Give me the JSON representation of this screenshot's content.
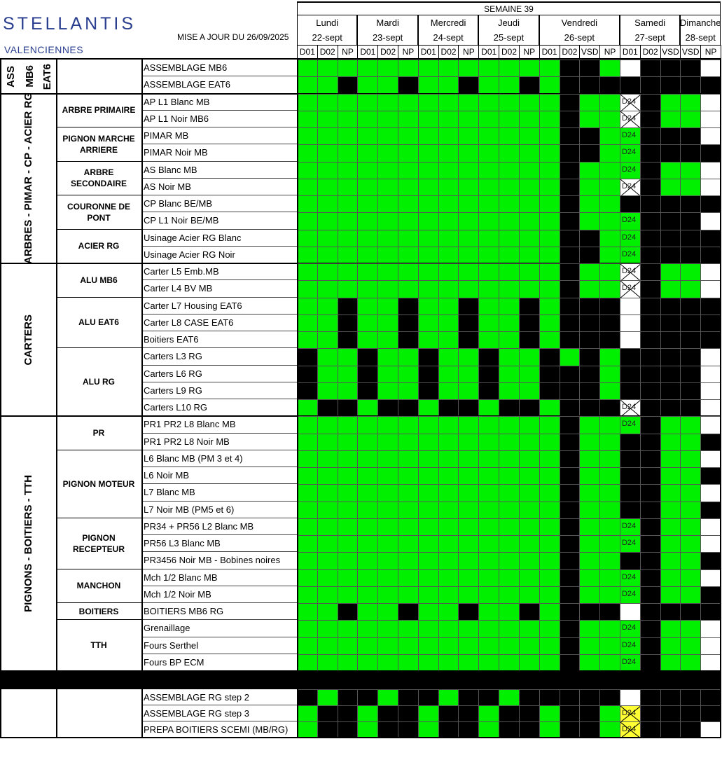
{
  "header": {
    "logo": "STELLANTIS",
    "site": "VALENCIENNES",
    "update": "MISE A JOUR DU 26/09/2025",
    "week": "SEMAINE 39"
  },
  "days": [
    {
      "name": "Lundi",
      "date": "22-sept",
      "shifts": [
        "D01",
        "D02",
        "NP"
      ]
    },
    {
      "name": "Mardi",
      "date": "23-sept",
      "shifts": [
        "D01",
        "D02",
        "NP"
      ]
    },
    {
      "name": "Mercredi",
      "date": "24-sept",
      "shifts": [
        "D01",
        "D02",
        "NP"
      ]
    },
    {
      "name": "Jeudi",
      "date": "25-sept",
      "shifts": [
        "D01",
        "D02",
        "NP"
      ]
    },
    {
      "name": "Vendredi",
      "date": "26-sept",
      "shifts": [
        "D01",
        "D02",
        "VSD",
        "NP"
      ]
    },
    {
      "name": "Samedi",
      "date": "27-sept",
      "shifts": [
        "D01",
        "D02",
        "VSD"
      ]
    },
    {
      "name": "Dimanche",
      "date": "28-sept",
      "shifts": [
        "VSD",
        "NP"
      ]
    }
  ],
  "cell_colors": {
    "G": "#00f000",
    "K": "#000000",
    "W": "#ffffff",
    "D": "#00f000",
    "X": "#ffffff",
    "Y": "#ffff33"
  },
  "cell_text": "D24",
  "groups": [
    {
      "label": "ASS",
      "sublabels": [
        "MB6",
        "EAT6"
      ],
      "subgroups": [
        {
          "rows": [
            {
              "name": "ASSEMBLAGE MB6",
              "cells": "GGGGGGGGGGGGGKKGWKKKW"
            },
            {
              "name": "ASSEMBLAGE EAT6",
              "cells": "GGKGGKGGKGGKGKKKKKKKK"
            }
          ]
        }
      ]
    },
    {
      "label": "ARBRES - PIMAR - CP - ACIER RG",
      "subgroups": [
        {
          "label": "ARBRE PRIMAIRE",
          "rows": [
            {
              "name": "AP L1 Blanc MB",
              "cells": "GGGGGGGGGGGGGKGGXKGGW"
            },
            {
              "name": "AP L1 Noir MB6",
              "cells": "GGGGGGGGGGGGGKGGXKGGW"
            }
          ]
        },
        {
          "label": "PIGNON MARCHE ARRIERE",
          "rows": [
            {
              "name": "PIMAR MB",
              "cells": "GGGGGGGGGGGGGKKGDKKKW"
            },
            {
              "name": "PIMAR Noir MB",
              "cells": "GGGGGGGGGGGGGKKGDKKKK"
            }
          ]
        },
        {
          "label": "ARBRE SECONDAIRE",
          "rows": [
            {
              "name": "AS Blanc MB",
              "cells": "GGGGGGGGGGGGGKGGDKGGW"
            },
            {
              "name": "AS Noir MB",
              "cells": "GGGGGGGGGGGGGKGGXKGGW"
            }
          ]
        },
        {
          "label": "COURONNE DE PONT",
          "rows": [
            {
              "name": "CP Blanc BE/MB",
              "cells": "GGGGGGGGGGGGGKGGKKKKK"
            },
            {
              "name": "CP L1 Noir BE/MB",
              "cells": "GGGGGGGGGGGGGKGGDKKKW"
            }
          ]
        },
        {
          "label": "ACIER RG",
          "rows": [
            {
              "name": "Usinage Acier RG Blanc",
              "cells": "GGGGGGGGGGGGGKKGDKKKK"
            },
            {
              "name": "Usinage Acier RG Noir",
              "cells": "GGGGGGGGGGGGGKKGDKKKK"
            }
          ]
        }
      ]
    },
    {
      "label": "CARTERS",
      "subgroups": [
        {
          "label": "ALU MB6",
          "rows": [
            {
              "name": "Carter L5 Emb.MB",
              "cells": "GGGGGGGGGGGGGKGGXKGGW"
            },
            {
              "name": "Carter L4 BV MB",
              "cells": "GGGGGGGGGGGGGKGGXKGGW"
            }
          ]
        },
        {
          "label": "ALU EAT6",
          "rows": [
            {
              "name": "Carter L7 Housing EAT6",
              "cells": "GGKGGKGGKGGKGKKKWKKKK"
            },
            {
              "name": "Carter L8 CASE EAT6",
              "cells": "GGKGGKGGKGGKGKKKWKKKK"
            },
            {
              "name": "Boitiers EAT6",
              "cells": "GGKGGKGGKGGKGKKKWKKKK"
            }
          ]
        },
        {
          "label": "ALU RG",
          "rows": [
            {
              "name": "Carters L3 RG",
              "cells": "KGGKGGKGGKGGKGKGKKKKW"
            },
            {
              "name": "Carters L6 RG",
              "cells": "KGGKGGKGGKGGKKKGKKKKW"
            },
            {
              "name": "Carters L9 RG",
              "cells": "KGGKGGKGGKGGKKKGKKKKW"
            },
            {
              "name": "Carters L10 RG",
              "cells": "GKKGKKGKKGKKGKKKXKKKW"
            }
          ]
        }
      ]
    },
    {
      "label": "PIGNONS - BOITIERS - TTH",
      "subgroups": [
        {
          "label": "PR",
          "rows": [
            {
              "name": "PR1 PR2 L8 Blanc MB",
              "cells": "GGGGGGGGGGGGGKGGDKGGW"
            },
            {
              "name": "PR1 PR2 L8 Noir MB",
              "cells": "GGGGGGGGGGGGGKGGKKGGK"
            }
          ]
        },
        {
          "label": "PIGNON MOTEUR",
          "rows": [
            {
              "name": "L6 Blanc MB (PM 3 et 4)",
              "cells": "GGGGGGGGGGGGGKGGKKGGW"
            },
            {
              "name": "L6 Noir MB",
              "cells": "GGGGGGGGGGGGGKGGKKGGK"
            },
            {
              "name": "L7 Blanc MB",
              "cells": "GGGGGGGGGGGGGKGGKKGGW"
            },
            {
              "name": "L7 Noir MB (PM5 et 6)",
              "cells": "GGGGGGGGGGGGGKGGKKGGK"
            }
          ]
        },
        {
          "label": "PIGNON RECEPTEUR",
          "rows": [
            {
              "name": "PR34 + PR56 L2 Blanc MB",
              "cells": "GGGGGGGGGGGGGKGGDKGGW"
            },
            {
              "name": "PR56 L3 Blanc MB",
              "cells": "GGGGGGGGGGGGGKGGDKGGW"
            },
            {
              "name": "PR3456 Noir MB - Bobines noires",
              "cells": "GGGGGGGGGGGGGKGGKKGGK"
            }
          ]
        },
        {
          "label": "MANCHON",
          "rows": [
            {
              "name": "Mch 1/2 Blanc MB",
              "cells": "GGGGGGGGGGGGGKGGDKGGW"
            },
            {
              "name": "Mch 1/2 Noir MB",
              "cells": "GGGGGGGGGGGGGKGGDKGGK"
            }
          ]
        },
        {
          "label": "BOITIERS",
          "rows": [
            {
              "name": "BOITIERS MB6 RG",
              "cells": "GGKGGKGGKGGKGKKKWKKKK"
            }
          ]
        },
        {
          "label": "TTH",
          "rows": [
            {
              "name": "Grenaillage",
              "cells": "GGGGGGGGGGGGGKGGDKGGW"
            },
            {
              "name": "Fours Serthel",
              "cells": "GGGGGGGGGGGGGKGGDKGGW"
            },
            {
              "name": "Fours BP ECM",
              "cells": "GGGGGGGGGGGGGKGGDKGGW"
            }
          ]
        }
      ]
    },
    {
      "subgroups": [
        {
          "rows": [
            {
              "name": "ASSEMBLAGE RG step 2",
              "cells": "KGKKGKKGKKGKKKKKWKKKK"
            },
            {
              "name": "ASSEMBLAGE RG step 3",
              "cells": "GKKGKKGKKGKKGKKGYKKKK"
            },
            {
              "name": "PREPA BOITIERS SCEMI (MB/RG)",
              "cells": "GKKGKKGKKGKKGKKGYKKKW"
            }
          ]
        }
      ]
    }
  ]
}
